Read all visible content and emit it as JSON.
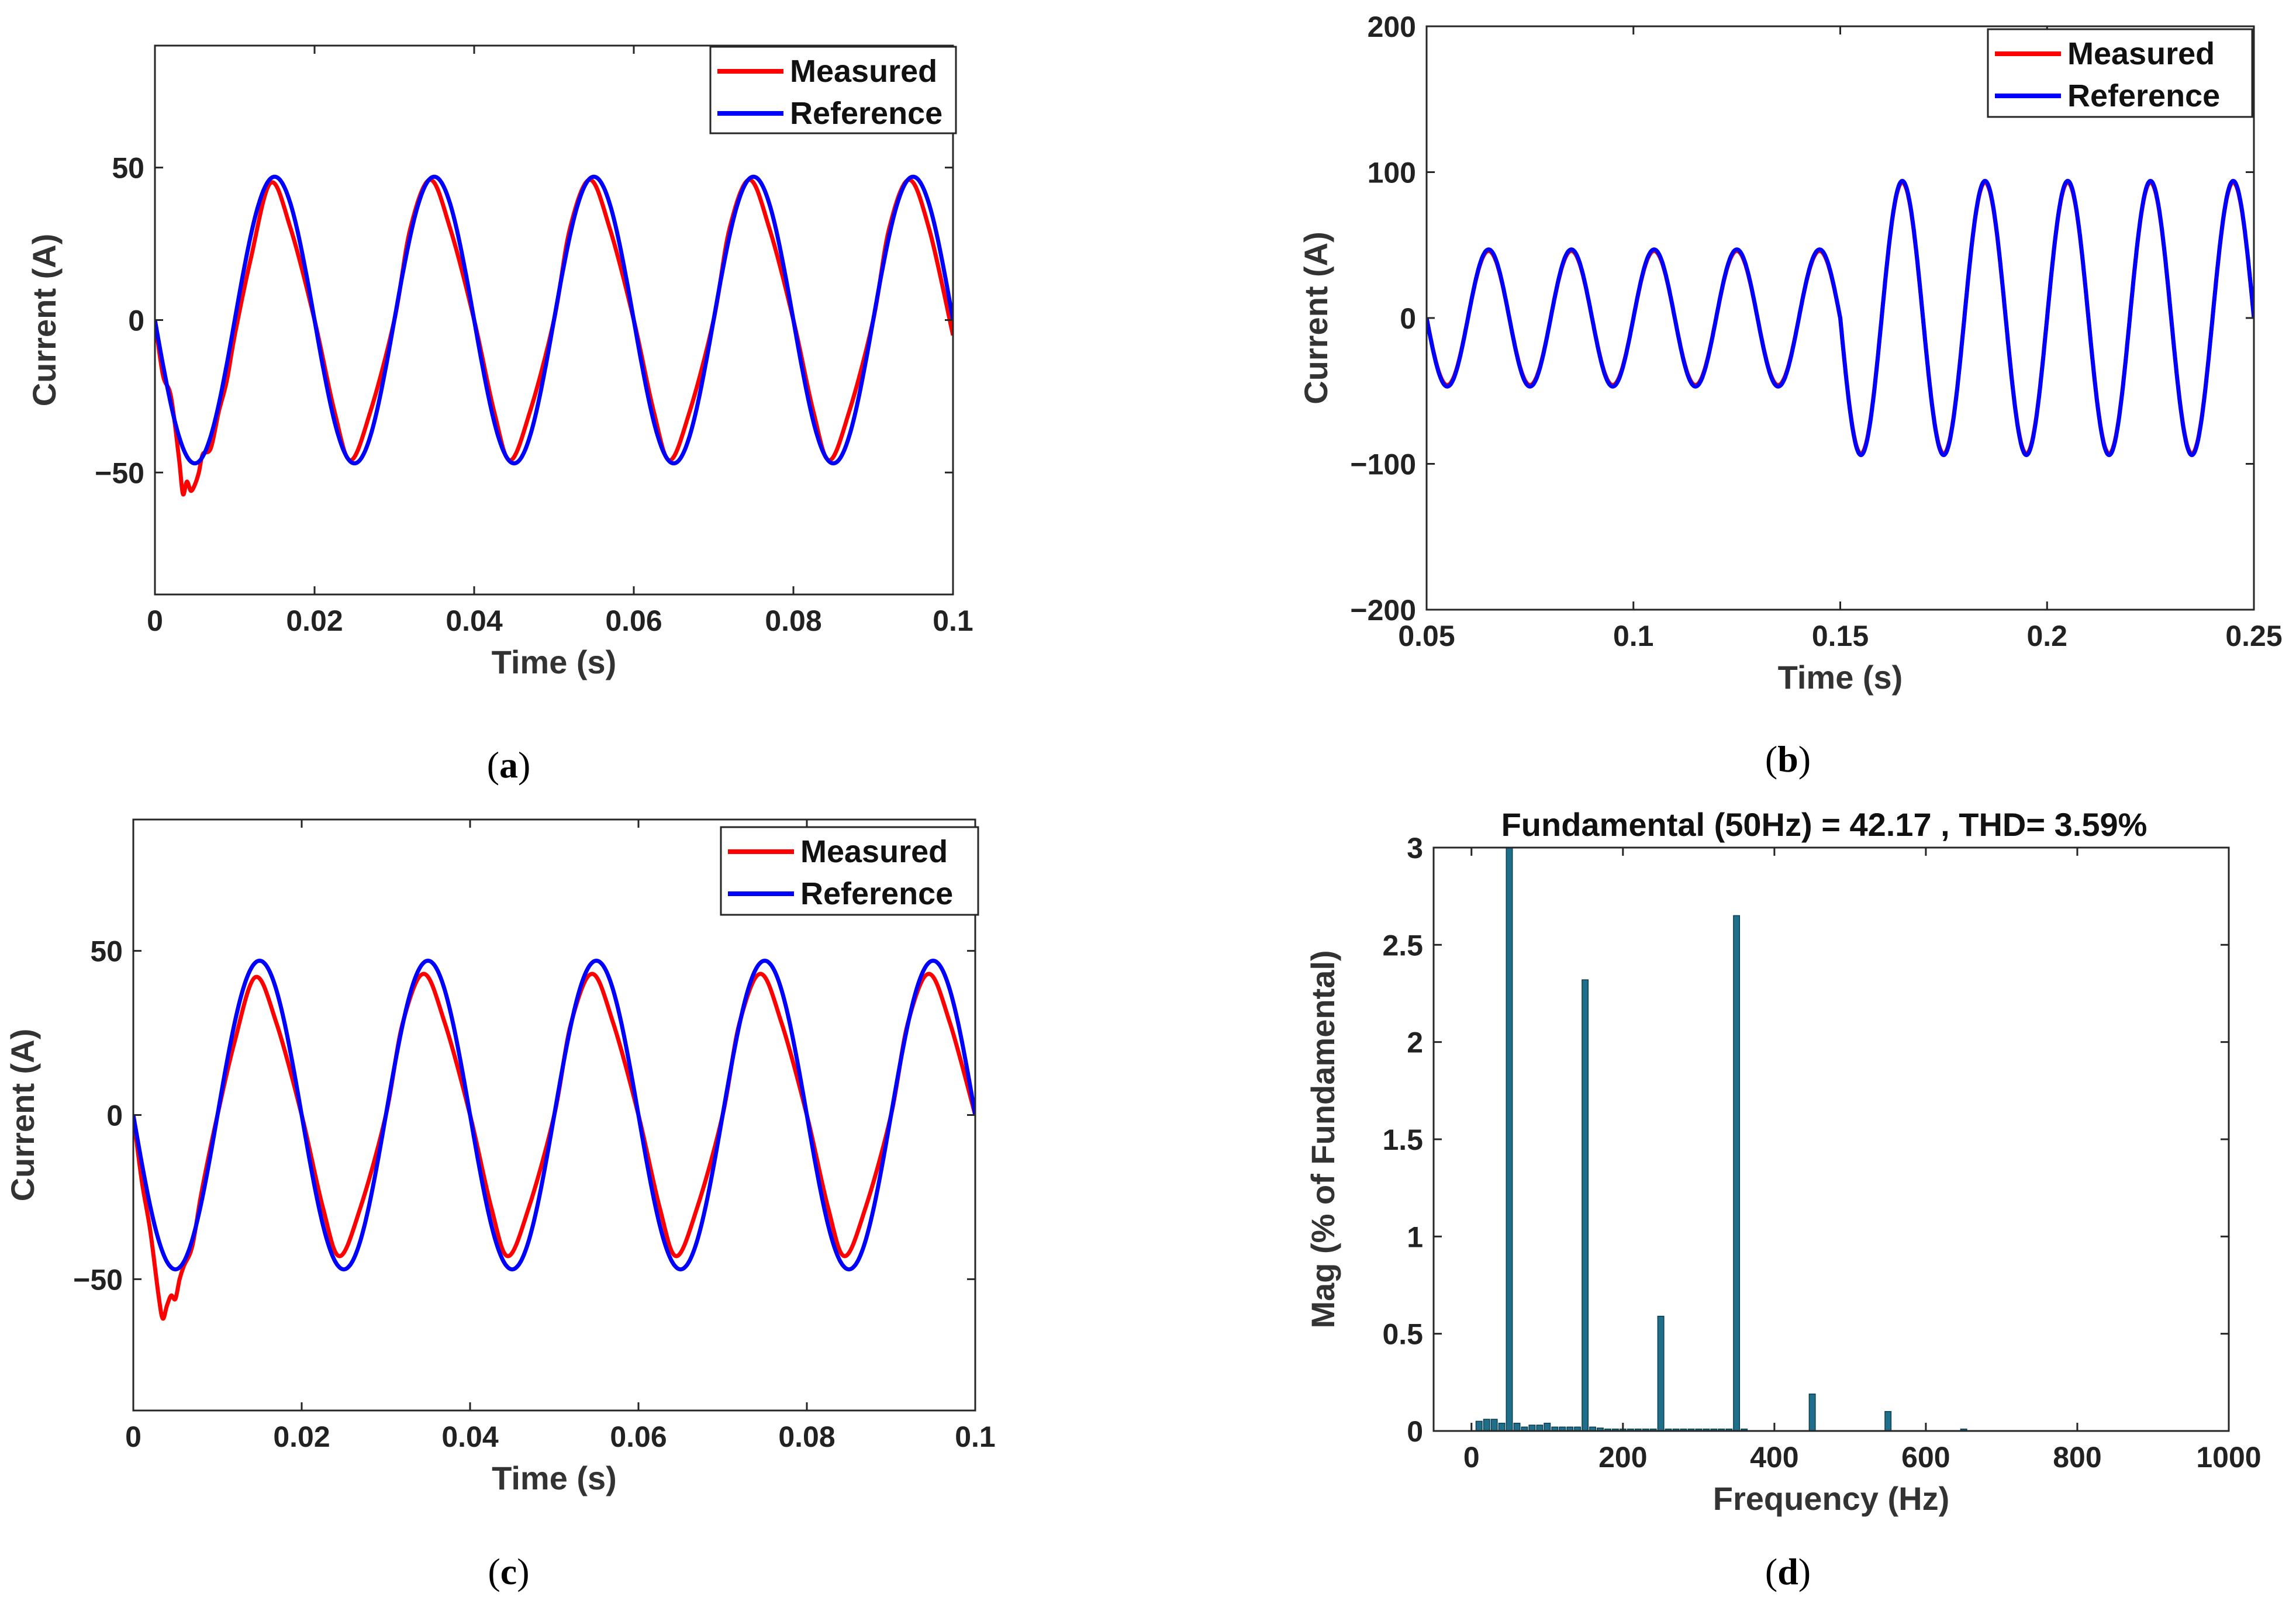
{
  "chart_data": [
    {
      "id": "a",
      "panel_label": "a",
      "type": "line",
      "xlabel": "Time (s)",
      "ylabel": "Current (A)",
      "xlim": [
        0,
        0.1
      ],
      "ylim": [
        -90,
        90
      ],
      "xticks": [
        0,
        0.02,
        0.04,
        0.06,
        0.08,
        0.1
      ],
      "xtick_labels": [
        "0",
        "0.02",
        "0.04",
        "0.06",
        "0.08",
        "0.1"
      ],
      "yticks": [
        -50,
        0,
        50
      ],
      "ytick_labels": [
        "−50",
        "0",
        "50"
      ],
      "legend_position": "top-right",
      "series": [
        {
          "name": "Measured",
          "color": "#ff0000",
          "x": [
            0,
            0.001,
            0.002,
            0.003,
            0.0035,
            0.004,
            0.0045,
            0.005,
            0.0055,
            0.006,
            0.007,
            0.008,
            0.009,
            0.01,
            0.012,
            0.0145,
            0.017,
            0.02,
            0.0225,
            0.0245,
            0.027,
            0.03,
            0.032,
            0.0345,
            0.037,
            0.04,
            0.0425,
            0.0445,
            0.047,
            0.05,
            0.052,
            0.0545,
            0.057,
            0.06,
            0.0625,
            0.0645,
            0.067,
            0.07,
            0.072,
            0.0745,
            0.077,
            0.08,
            0.0825,
            0.0845,
            0.087,
            0.09,
            0.092,
            0.0945,
            0.097,
            0.1
          ],
          "y": [
            0,
            -18,
            -25,
            -45,
            -57,
            -53,
            -56,
            -54,
            -50,
            -44,
            -42,
            -30,
            -20,
            -5,
            20,
            45,
            30,
            0,
            -30,
            -46,
            -30,
            0,
            30,
            46,
            30,
            0,
            -30,
            -46,
            -30,
            0,
            30,
            46,
            30,
            0,
            -30,
            -46,
            -30,
            0,
            30,
            46,
            30,
            0,
            -30,
            -46,
            -30,
            0,
            30,
            46,
            30,
            -5
          ]
        },
        {
          "name": "Reference",
          "color": "#0000ff",
          "amplitude": 47,
          "frequency_hz": 50,
          "phase_deg": 180,
          "x_range": [
            0,
            0.1
          ]
        }
      ]
    },
    {
      "id": "b",
      "panel_label": "b",
      "type": "line",
      "xlabel": "Time (s)",
      "ylabel": "Current (A)",
      "xlim": [
        0.05,
        0.25
      ],
      "ylim": [
        -200,
        200
      ],
      "xticks": [
        0.05,
        0.1,
        0.15,
        0.2,
        0.25
      ],
      "xtick_labels": [
        "0.05",
        "0.1",
        "0.15",
        "0.2",
        "0.25"
      ],
      "yticks": [
        -200,
        -100,
        0,
        100,
        200
      ],
      "ytick_labels": [
        "−200",
        "−100",
        "0",
        "100",
        "200"
      ],
      "legend_position": "top-right",
      "series": [
        {
          "name": "Measured",
          "color": "#ff0000",
          "segments": [
            {
              "t_start": 0.05,
              "t_end": 0.15,
              "amplitude": 46,
              "frequency_hz": 50,
              "phase_deg": 0
            },
            {
              "t_start": 0.15,
              "t_end": 0.25,
              "amplitude": 93,
              "frequency_hz": 50,
              "phase_deg": 0
            }
          ]
        },
        {
          "name": "Reference",
          "color": "#0000ff",
          "segments": [
            {
              "t_start": 0.05,
              "t_end": 0.15,
              "amplitude": 47,
              "frequency_hz": 50,
              "phase_deg": 0
            },
            {
              "t_start": 0.15,
              "t_end": 0.25,
              "amplitude": 94,
              "frequency_hz": 50,
              "phase_deg": 0
            }
          ]
        }
      ]
    },
    {
      "id": "c",
      "panel_label": "c",
      "type": "line",
      "xlabel": "Time (s)",
      "ylabel": "Current (A)",
      "xlim": [
        0,
        0.1
      ],
      "ylim": [
        -90,
        90
      ],
      "xticks": [
        0,
        0.02,
        0.04,
        0.06,
        0.08,
        0.1
      ],
      "xtick_labels": [
        "0",
        "0.02",
        "0.04",
        "0.06",
        "0.08",
        "0.1"
      ],
      "yticks": [
        -50,
        0,
        50
      ],
      "ytick_labels": [
        "−50",
        "0",
        "50"
      ],
      "legend_position": "top-right",
      "series": [
        {
          "name": "Measured",
          "color": "#ff0000",
          "x": [
            0,
            0.001,
            0.002,
            0.003,
            0.0035,
            0.004,
            0.0045,
            0.005,
            0.0055,
            0.006,
            0.007,
            0.008,
            0.009,
            0.01,
            0.012,
            0.0145,
            0.017,
            0.02,
            0.0225,
            0.0245,
            0.027,
            0.03,
            0.032,
            0.0345,
            0.037,
            0.04,
            0.0425,
            0.0445,
            0.047,
            0.05,
            0.052,
            0.0545,
            0.057,
            0.06,
            0.0625,
            0.0645,
            0.067,
            0.07,
            0.072,
            0.0745,
            0.077,
            0.08,
            0.0825,
            0.0845,
            0.087,
            0.09,
            0.092,
            0.0945,
            0.097,
            0.1
          ],
          "y": [
            0,
            -20,
            -35,
            -55,
            -62,
            -58,
            -55,
            -56,
            -50,
            -46,
            -40,
            -25,
            -12,
            0,
            22,
            42,
            28,
            0,
            -28,
            -43,
            -28,
            0,
            28,
            43,
            28,
            0,
            -28,
            -43,
            -28,
            0,
            28,
            43,
            28,
            0,
            -28,
            -43,
            -28,
            0,
            28,
            43,
            28,
            0,
            -28,
            -43,
            -28,
            0,
            28,
            43,
            28,
            0
          ]
        },
        {
          "name": "Reference",
          "color": "#0000ff",
          "amplitude": 47,
          "frequency_hz": 50,
          "phase_deg": 180,
          "x_range": [
            0,
            0.1
          ]
        }
      ]
    },
    {
      "id": "d",
      "panel_label": "d",
      "type": "bar",
      "title": "Fundamental (50Hz) = 42.17 , THD= 3.59%",
      "xlabel": "Frequency (Hz)",
      "ylabel": "Mag (% of Fundamental)",
      "xlim": [
        -50,
        1000
      ],
      "ylim": [
        0,
        3
      ],
      "xticks": [
        0,
        200,
        400,
        600,
        800,
        1000
      ],
      "xtick_labels": [
        "0",
        "200",
        "400",
        "600",
        "800",
        "1000"
      ],
      "yticks": [
        0,
        0.5,
        1,
        1.5,
        2,
        2.5,
        3
      ],
      "ytick_labels": [
        "0",
        "0.5",
        "1",
        "1.5",
        "2",
        "2.5",
        "3"
      ],
      "bar_color": "#1f6f8b",
      "bar_width_hz": 8,
      "x": [
        10,
        20,
        30,
        40,
        50,
        60,
        70,
        80,
        90,
        100,
        110,
        120,
        130,
        140,
        150,
        160,
        170,
        180,
        190,
        200,
        210,
        220,
        230,
        240,
        250,
        260,
        270,
        280,
        290,
        300,
        310,
        320,
        330,
        340,
        350,
        360,
        450,
        550,
        650
      ],
      "values": [
        0.05,
        0.06,
        0.06,
        0.04,
        3.0,
        0.04,
        0.02,
        0.03,
        0.03,
        0.04,
        0.02,
        0.02,
        0.02,
        0.02,
        2.32,
        0.02,
        0.015,
        0.01,
        0.01,
        0.01,
        0.01,
        0.01,
        0.01,
        0.01,
        0.59,
        0.01,
        0.01,
        0.01,
        0.01,
        0.01,
        0.01,
        0.01,
        0.01,
        0.01,
        2.65,
        0.01,
        0.19,
        0.1,
        0.01
      ]
    }
  ]
}
